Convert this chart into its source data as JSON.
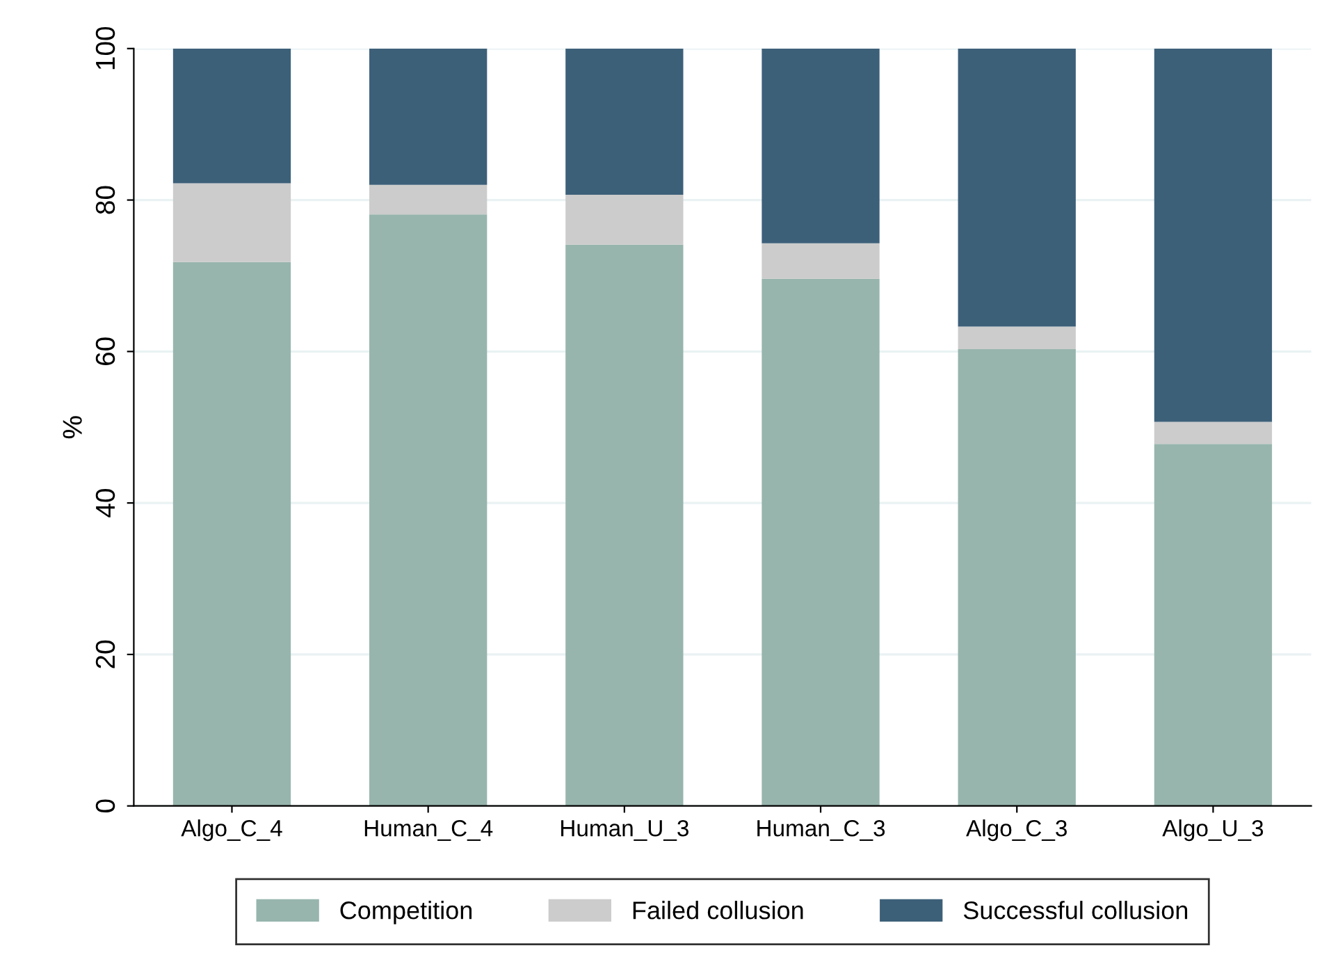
{
  "chart_data": {
    "type": "bar",
    "stacked": true,
    "ylabel": "%",
    "categories": [
      "Algo_C_4",
      "Human_C_4",
      "Human_U_3",
      "Human_C_3",
      "Algo_C_3",
      "Algo_U_3"
    ],
    "series": [
      {
        "name": "Competition",
        "color": "#97b5ad",
        "values": [
          71.8,
          78.1,
          74.1,
          69.6,
          60.3,
          47.8
        ]
      },
      {
        "name": "Failed collusion",
        "color": "#cccccc",
        "values": [
          10.4,
          3.9,
          6.6,
          4.7,
          3.0,
          2.9
        ]
      },
      {
        "name": "Successful collusion",
        "color": "#3d6079",
        "values": [
          17.8,
          18.0,
          19.3,
          25.7,
          36.7,
          49.3
        ]
      }
    ],
    "ylim": [
      0,
      100
    ],
    "yticks": [
      0,
      20,
      40,
      60,
      80,
      100
    ],
    "grid": "y",
    "legend": "bottom"
  }
}
